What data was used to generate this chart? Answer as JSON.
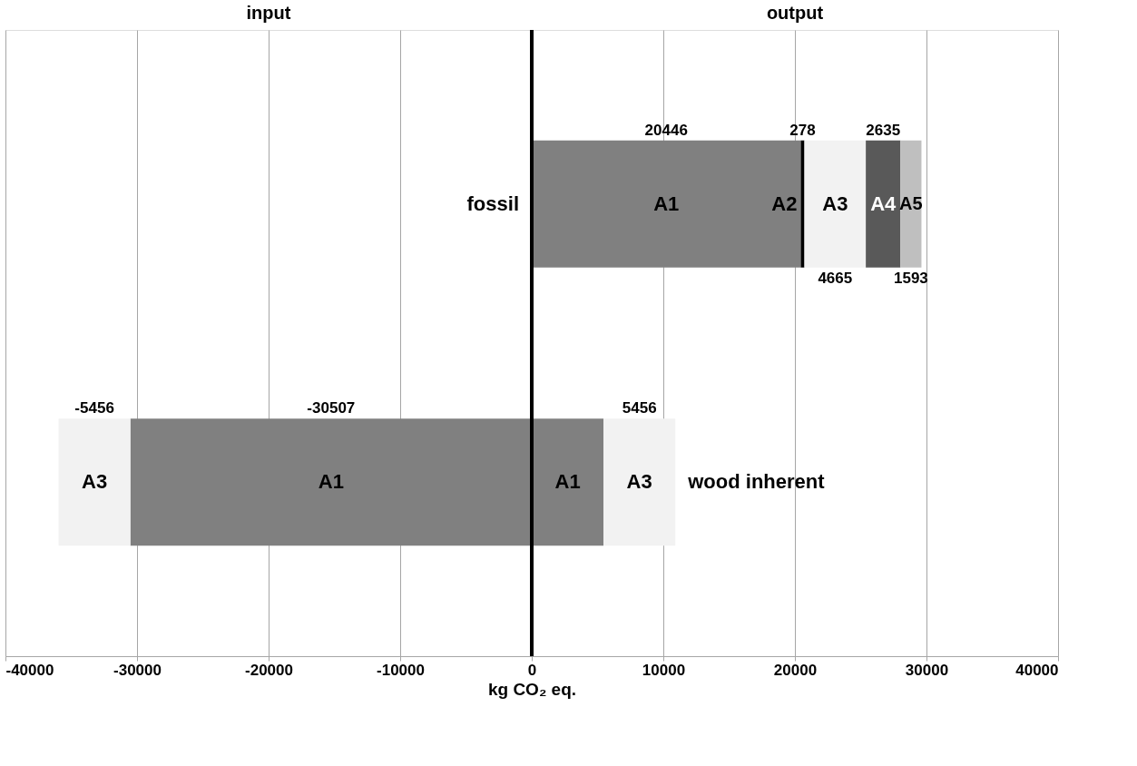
{
  "chart_data": {
    "type": "bar",
    "orientation": "horizontal",
    "stacked": true,
    "categories": [
      "fossil",
      "wood inherent"
    ],
    "series": [
      {
        "name": "A1",
        "color": "#808080",
        "values": [
          20446,
          5456
        ],
        "value_labels": [
          "20446",
          null
        ]
      },
      {
        "name": "A2",
        "color": "#000000",
        "values": [
          278,
          null
        ],
        "value_labels": [
          "278",
          null
        ]
      },
      {
        "name": "A3",
        "color": "#f2f2f2",
        "values": [
          4665,
          5456
        ],
        "value_labels": [
          "4665",
          "5456"
        ]
      },
      {
        "name": "A4",
        "color": "#595959",
        "values": [
          2635,
          null
        ],
        "value_labels": [
          "2635",
          null
        ]
      },
      {
        "name": "A5",
        "color": "#bfbfbf",
        "values": [
          1593,
          null
        ],
        "value_labels": [
          "1593",
          null
        ]
      },
      {
        "name": "A1",
        "color": "#808080",
        "values": [
          null,
          -30507
        ],
        "value_labels": [
          null,
          "-30507"
        ]
      },
      {
        "name": "A3",
        "color": "#f2f2f2",
        "values": [
          null,
          -5456
        ],
        "value_labels": [
          null,
          "-5456"
        ]
      }
    ],
    "xlim": [
      -40000,
      40000
    ],
    "xticks": [
      -40000,
      -30000,
      -20000,
      -10000,
      0,
      10000,
      20000,
      30000,
      40000
    ],
    "xlabel": "kg CO₂ eq.",
    "grid": "x",
    "legend": false,
    "tick_labels": "x",
    "ref_lines": [
      {
        "axis": "x",
        "value": 0
      }
    ],
    "annotations": [
      "input",
      "output"
    ]
  }
}
